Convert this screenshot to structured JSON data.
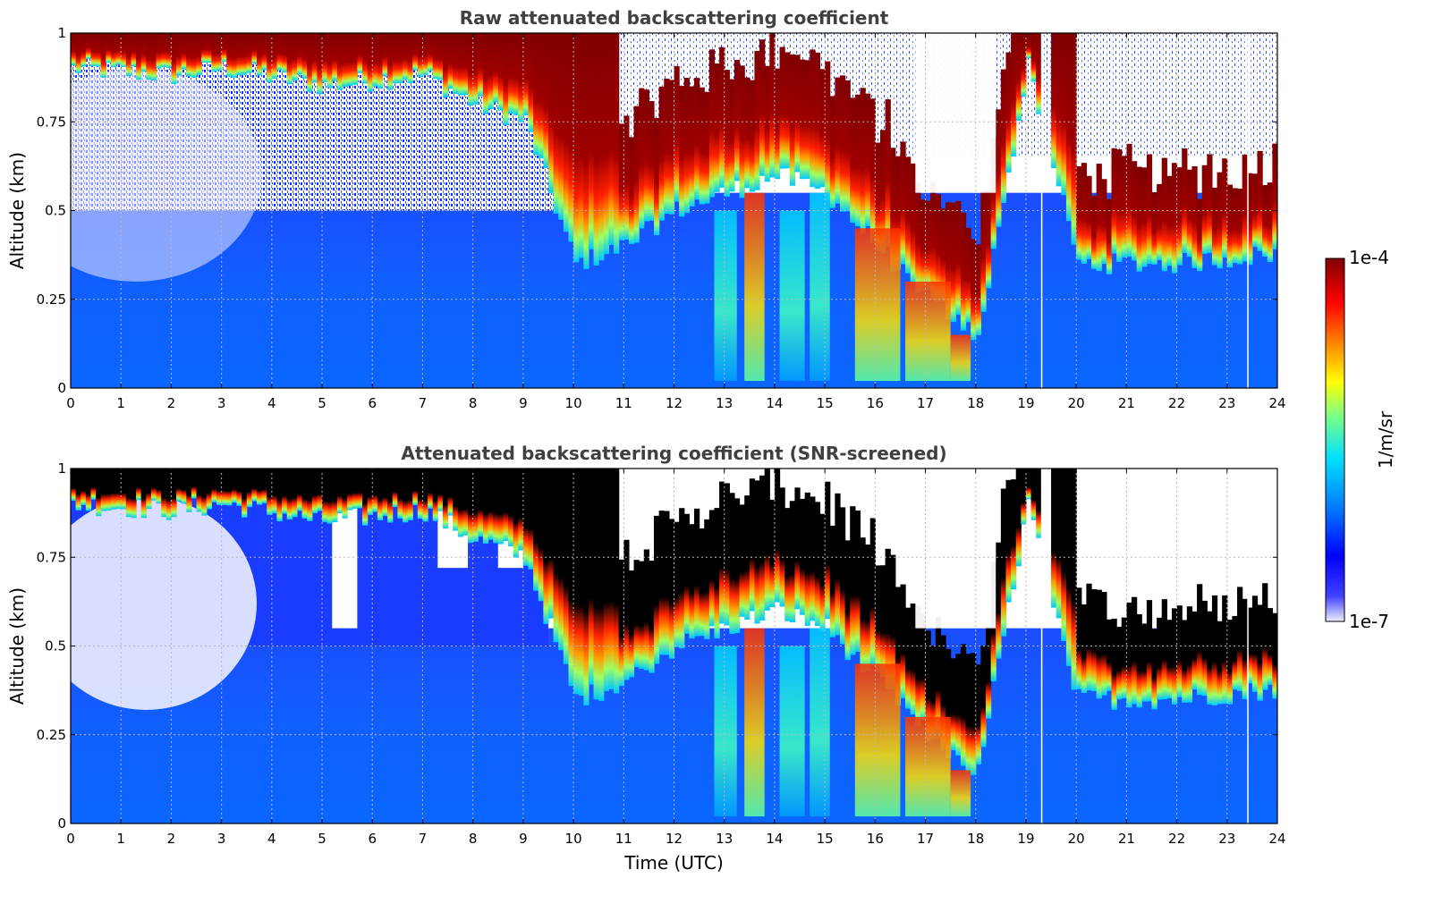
{
  "chart_data": [
    {
      "type": "heatmap",
      "id": "raw",
      "title": "Raw attenuated backscattering coefficient",
      "xlabel": "",
      "ylabel": "Altitude (km)",
      "xlim": [
        0,
        24
      ],
      "ylim": [
        0,
        1
      ],
      "xticks": [
        "0",
        "1",
        "2",
        "3",
        "4",
        "5",
        "6",
        "7",
        "8",
        "9",
        "10",
        "11",
        "12",
        "13",
        "14",
        "15",
        "16",
        "17",
        "18",
        "19",
        "20",
        "21",
        "22",
        "23",
        "24"
      ],
      "yticks": [
        "0",
        "0.25",
        "0.5",
        "0.75",
        "1"
      ],
      "grid": true,
      "cloud_base_profile_km": [
        {
          "t": 0,
          "base": 0.9
        },
        {
          "t": 2,
          "base": 0.88
        },
        {
          "t": 3,
          "base": 0.9
        },
        {
          "t": 5,
          "base": 0.85
        },
        {
          "t": 7,
          "base": 0.88
        },
        {
          "t": 8,
          "base": 0.8
        },
        {
          "t": 9,
          "base": 0.75
        },
        {
          "t": 10,
          "base": 0.35
        },
        {
          "t": 11,
          "base": 0.4
        },
        {
          "t": 12,
          "base": 0.5
        },
        {
          "t": 13,
          "base": 0.55
        },
        {
          "t": 14,
          "base": 0.6
        },
        {
          "t": 15,
          "base": 0.55
        },
        {
          "t": 16,
          "base": 0.4
        },
        {
          "t": 17,
          "base": 0.25
        },
        {
          "t": 18,
          "base": 0.15
        },
        {
          "t": 19,
          "base": 0.9
        },
        {
          "t": 20,
          "base": 0.35
        },
        {
          "t": 22,
          "base": 0.35
        },
        {
          "t": 24,
          "base": 0.38
        }
      ]
    },
    {
      "type": "heatmap",
      "id": "screened",
      "title": "Attenuated backscattering coefficient (SNR-screened)",
      "xlabel": "Time (UTC)",
      "ylabel": "Altitude (km)",
      "xlim": [
        0,
        24
      ],
      "ylim": [
        0,
        1
      ],
      "xticks": [
        "0",
        "1",
        "2",
        "3",
        "4",
        "5",
        "6",
        "7",
        "8",
        "9",
        "10",
        "11",
        "12",
        "13",
        "14",
        "15",
        "16",
        "17",
        "18",
        "19",
        "20",
        "21",
        "22",
        "23",
        "24"
      ],
      "yticks": [
        "0",
        "0.25",
        "0.5",
        "0.75",
        "1"
      ],
      "grid": true
    }
  ],
  "colorbar": {
    "label": "1/m/sr",
    "max_label": "1e-4",
    "min_label": "1e-7",
    "range": [
      1e-07,
      0.0001
    ],
    "scale": "log",
    "colors": [
      "#eeeeff",
      "#0000ff",
      "#0080ff",
      "#00e0ff",
      "#80ff80",
      "#ffff00",
      "#ff8000",
      "#ff0000",
      "#800000"
    ]
  }
}
